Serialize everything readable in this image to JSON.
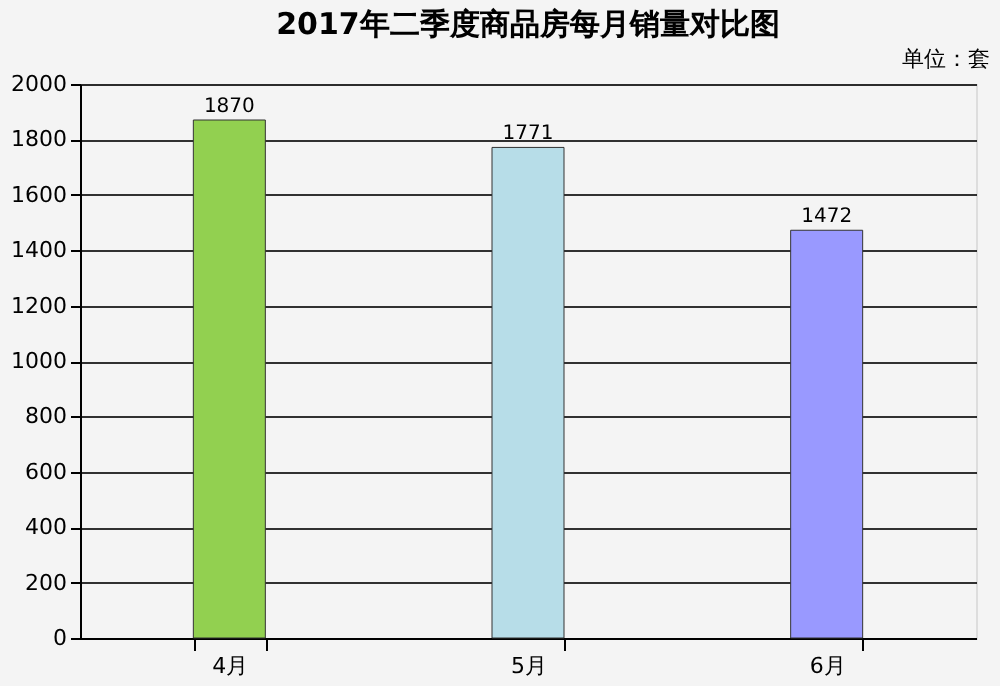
{
  "chart_data": {
    "type": "bar",
    "title": "2017年二季度商品房每月销量对比图",
    "annotations": [
      "单位：套"
    ],
    "categories": [
      "4月",
      "5月",
      "6月"
    ],
    "values": [
      1870,
      1771,
      1472
    ],
    "colors": [
      "#92d050",
      "#b7dde8",
      "#9999ff"
    ],
    "ylim": [
      0,
      2000
    ],
    "yticks": [
      0,
      200,
      400,
      600,
      800,
      1000,
      1200,
      1400,
      1600,
      1800,
      2000
    ],
    "grid": "y",
    "data_labels": true,
    "legend": false
  }
}
